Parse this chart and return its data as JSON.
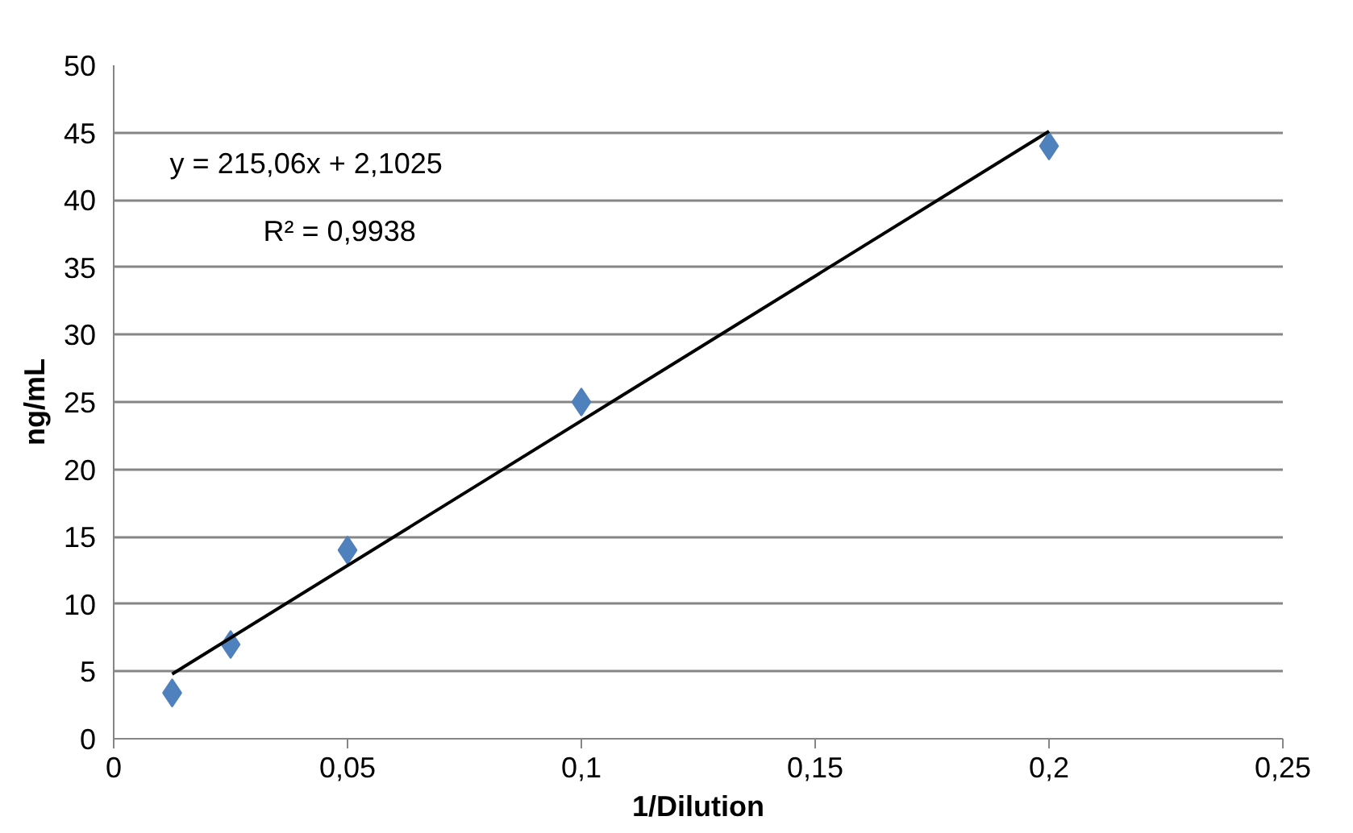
{
  "chart_data": {
    "type": "scatter",
    "xlabel": "1/Dilution",
    "ylabel": "ng/mL",
    "x": [
      0.0125,
      0.025,
      0.05,
      0.1,
      0.2
    ],
    "series": [
      {
        "color": "#4f81bd",
        "values": [
          3.4,
          7,
          14,
          25,
          44
        ],
        "marker": "diamond"
      },
      {
        "type": "line",
        "color": "#000000",
        "x": [
          0.0125,
          0.2
        ],
        "values": [
          4.8,
          45.1
        ],
        "marker": "none",
        "line_style": "solid"
      }
    ],
    "annotations": [
      "y = 215,06x + 2,1025",
      "R² = 0,9938"
    ],
    "xlim": [
      0,
      0.25
    ],
    "xticks": [
      0,
      {
        "value": 0.05,
        "label": "0,05"
      },
      {
        "value": 0.1,
        "label": "0,1"
      },
      {
        "value": 0.15,
        "label": "0,15"
      },
      {
        "value": 0.2,
        "label": "0,2"
      },
      {
        "value": 0.25,
        "label": "0,25"
      }
    ],
    "ylim": [
      0,
      50
    ],
    "yticks": [
      0,
      5,
      10,
      15,
      20,
      25,
      30,
      35,
      40,
      45,
      50
    ],
    "grid": "y"
  }
}
